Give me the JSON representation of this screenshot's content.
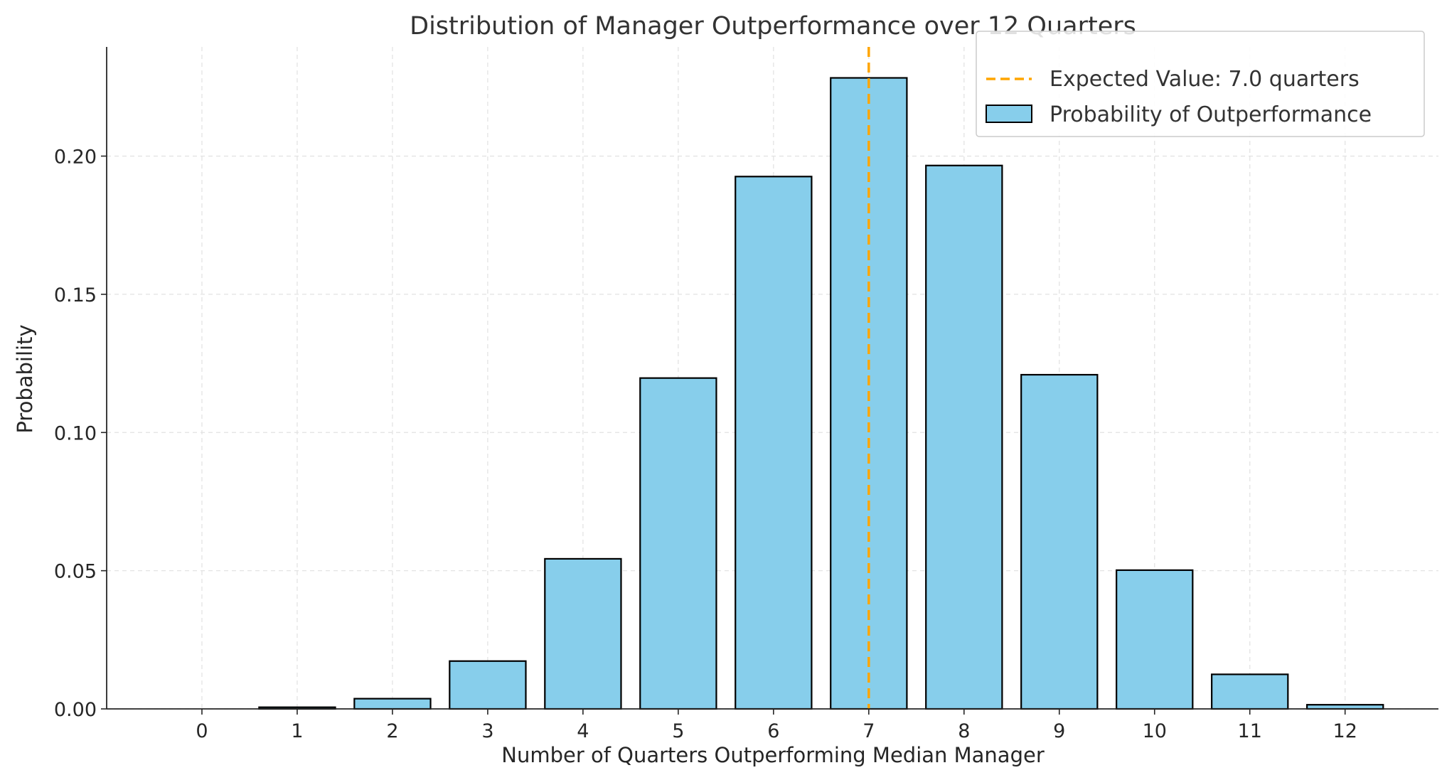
{
  "chart_data": {
    "type": "bar",
    "title": "Distribution of Manager Outperformance over 12 Quarters",
    "xlabel": "Number of Quarters Outperforming Median Manager",
    "ylabel": "Probability",
    "categories": [
      "0",
      "1",
      "2",
      "3",
      "4",
      "5",
      "6",
      "7",
      "8",
      "9",
      "10",
      "11",
      "12"
    ],
    "x": [
      0,
      1,
      2,
      3,
      4,
      5,
      6,
      7,
      8,
      9,
      10,
      11,
      12
    ],
    "series": [
      {
        "name": "Probability of Outperformance",
        "values": [
          0.0,
          0.0006,
          0.0037,
          0.0173,
          0.0543,
          0.1197,
          0.1926,
          0.2283,
          0.1966,
          0.1209,
          0.0502,
          0.0125,
          0.0015
        ],
        "color": "#87CEEB",
        "edgecolor": "#000000"
      }
    ],
    "reference_lines": [
      {
        "name": "Expected Value: 7.0 quarters",
        "x": 7.0,
        "color": "#FFA500",
        "style": "dashed"
      }
    ],
    "xlim": [
      -1,
      12.98
    ],
    "ylim": [
      0,
      0.2395
    ],
    "yticks": [
      0.0,
      0.05,
      0.1,
      0.15,
      0.2
    ],
    "ytick_labels": [
      "0.00",
      "0.05",
      "0.10",
      "0.15",
      "0.20"
    ],
    "grid": true,
    "legend_position": "upper right",
    "legend": [
      {
        "label": "Expected Value: 7.0 quarters",
        "kind": "line",
        "color": "#FFA500"
      },
      {
        "label": "Probability of Outperformance",
        "kind": "patch",
        "color": "#87CEEB"
      }
    ]
  }
}
